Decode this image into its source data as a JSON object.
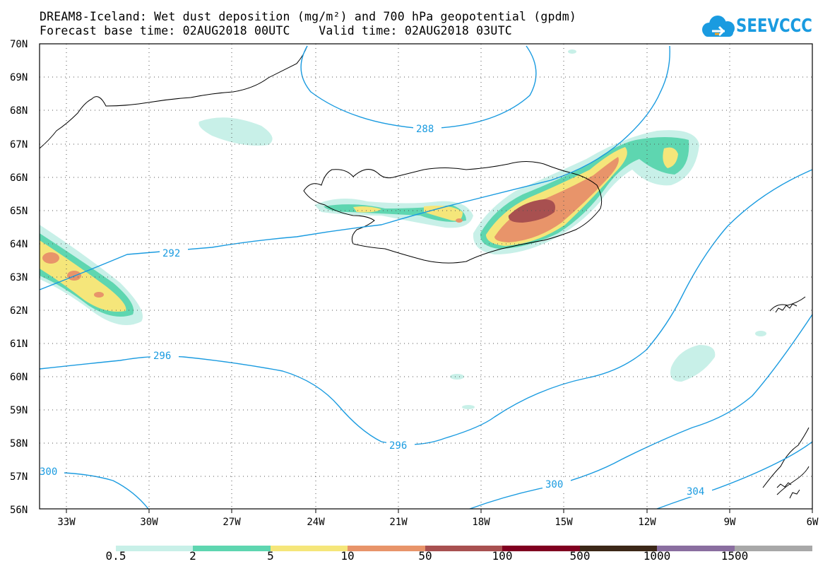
{
  "title": {
    "line1": "DREAM8-Iceland: Wet dust deposition (mg/m²) and 700 hPa geopotential (gpdm)",
    "line2": "Forecast base time: 02AUG2018 00UTC    Valid time: 02AUG2018 03UTC"
  },
  "logo": {
    "text": "SEEVCCC",
    "icon": "cloud-icon",
    "color": "#1a9be0"
  },
  "map": {
    "lat_labels": [
      "70N",
      "69N",
      "68N",
      "67N",
      "66N",
      "65N",
      "64N",
      "63N",
      "62N",
      "61N",
      "60N",
      "59N",
      "58N",
      "57N",
      "56N"
    ],
    "lon_labels": [
      "33W",
      "30W",
      "27W",
      "24W",
      "21W",
      "18W",
      "15W",
      "12W",
      "9W",
      "6W"
    ],
    "contour_labels": [
      "288",
      "292",
      "296",
      "296",
      "300",
      "300",
      "304"
    ],
    "contour_color": "#1a9be0"
  },
  "legend": {
    "colors": [
      "#c8f0e8",
      "#5ed6b0",
      "#f5e67a",
      "#e8946a",
      "#a85050",
      "#800020",
      "#3c2818",
      "#8a6ea0",
      "#a8a8a8"
    ],
    "labels": [
      "0.5",
      "2",
      "5",
      "10",
      "50",
      "100",
      "500",
      "1000",
      "1500"
    ]
  }
}
